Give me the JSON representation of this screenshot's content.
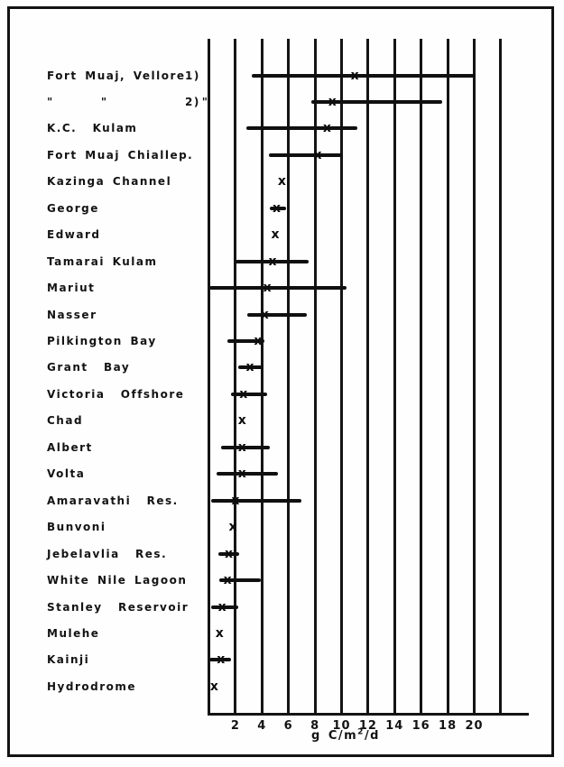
{
  "chart_data": {
    "type": "scatter",
    "title": "",
    "xlabel": "g C/m2/d",
    "xlabel_parts": {
      "prefix": "g C/m",
      "sup": "2",
      "suffix": "/d"
    },
    "ylabel": "",
    "xlim": [
      0,
      22
    ],
    "xticks": [
      2,
      4,
      6,
      8,
      10,
      12,
      14,
      16,
      18,
      20
    ],
    "grid": "vertical gridlines every 2 units, open at top, closed by x-axis at bottom",
    "legend": "none",
    "marker_glyph": "x",
    "rows": [
      {
        "label": "Fort Muaj, Vellore",
        "suffix": "1)",
        "min": 3.2,
        "max": 20.1,
        "mean": 11.0
      },
      {
        "label": "\"      \"            \"",
        "suffix": "2)",
        "min": 7.7,
        "max": 17.6,
        "mean": 9.3
      },
      {
        "label": "K.C.  Kulam",
        "suffix": "",
        "min": 2.8,
        "max": 11.2,
        "mean": 8.9
      },
      {
        "label": "Fort Muaj Chiallep.",
        "suffix": "",
        "min": 4.5,
        "max": 10.1,
        "mean": 8.2
      },
      {
        "label": "Kazinga Channel",
        "suffix": "",
        "min": null,
        "max": null,
        "mean": 5.5
      },
      {
        "label": "George",
        "suffix": "",
        "min": 4.6,
        "max": 5.8,
        "mean": 5.1
      },
      {
        "label": "Edward",
        "suffix": "",
        "min": null,
        "max": null,
        "mean": 5.0
      },
      {
        "label": "Tamarai Kulam",
        "suffix": "",
        "min": 2.0,
        "max": 7.5,
        "mean": 4.8
      },
      {
        "label": "Mariut",
        "suffix": "",
        "min": 0.0,
        "max": 10.4,
        "mean": 4.4
      },
      {
        "label": "Nasser",
        "suffix": "",
        "min": 2.9,
        "max": 7.4,
        "mean": 4.2
      },
      {
        "label": "Pilkington Bay",
        "suffix": "",
        "min": 1.4,
        "max": 4.2,
        "mean": 3.7
      },
      {
        "label": "Grant  Bay",
        "suffix": "",
        "min": 2.2,
        "max": 4.1,
        "mean": 3.1
      },
      {
        "label": "Victoria  Offshore",
        "suffix": "",
        "min": 1.7,
        "max": 4.4,
        "mean": 2.6
      },
      {
        "label": "Chad",
        "suffix": "",
        "min": null,
        "max": null,
        "mean": 2.5
      },
      {
        "label": "Albert",
        "suffix": "",
        "min": 0.9,
        "max": 4.6,
        "mean": 2.5
      },
      {
        "label": "Volta",
        "suffix": "",
        "min": 0.6,
        "max": 5.2,
        "mean": 2.5
      },
      {
        "label": "Amaravathi  Res.",
        "suffix": "",
        "min": 0.2,
        "max": 7.0,
        "mean": 2.0
      },
      {
        "label": "Bunvoni",
        "suffix": "",
        "min": null,
        "max": null,
        "mean": 1.8
      },
      {
        "label": "Jebelavlia  Res.",
        "suffix": "",
        "min": 0.7,
        "max": 2.3,
        "mean": 1.5
      },
      {
        "label": "White Nile Lagoon",
        "suffix": "",
        "min": 0.8,
        "max": 3.9,
        "mean": 1.4
      },
      {
        "label": "Stanley  Reservoir",
        "suffix": "",
        "min": 0.2,
        "max": 2.2,
        "mean": 1.0
      },
      {
        "label": "Mulehe",
        "suffix": "",
        "min": null,
        "max": null,
        "mean": 0.8
      },
      {
        "label": "Kainji",
        "suffix": "",
        "min": 0.0,
        "max": 1.7,
        "mean": 0.9
      },
      {
        "label": "Hydrodrome",
        "suffix": "",
        "min": null,
        "max": null,
        "mean": 0.4
      }
    ],
    "colors": {
      "ink": "#131313",
      "paper": "#fefefe"
    }
  }
}
